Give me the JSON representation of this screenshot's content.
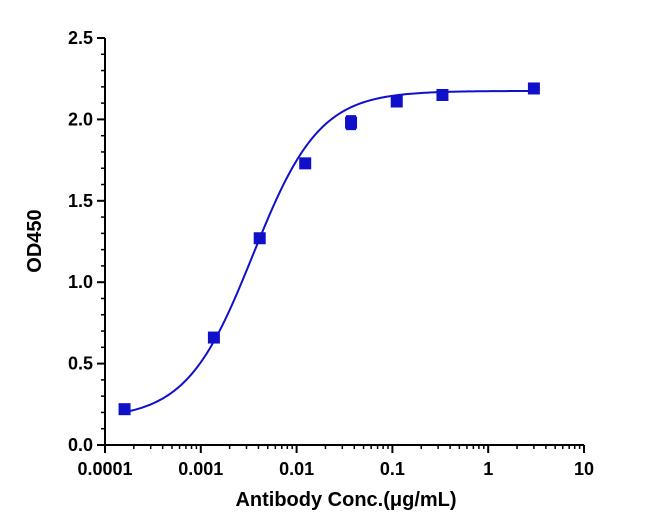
{
  "chart_data": {
    "type": "scatter",
    "title": "",
    "xlabel": "Antibody Conc.(μg/mL)",
    "ylabel": "OD450",
    "x_scale": "log",
    "xlim": [
      0.0001,
      10
    ],
    "ylim": [
      0,
      2.5
    ],
    "x_ticks": [
      "0.0001",
      "0.001",
      "0.01",
      "0.1",
      "1",
      "10"
    ],
    "y_ticks": [
      "0.0",
      "0.5",
      "1.0",
      "1.5",
      "2.0",
      "2.5"
    ],
    "grid": false,
    "legend": "none",
    "colors": {
      "series": "#1010c8",
      "axis": "#000000"
    },
    "series": [
      {
        "marker": "square",
        "x": [
          0.00016,
          0.00137,
          0.00412,
          0.0123,
          0.037,
          0.111,
          0.333,
          3.0
        ],
        "y": [
          0.22,
          0.66,
          1.27,
          1.73,
          1.98,
          2.11,
          2.15,
          2.19
        ],
        "error": [
          0.0,
          0.0,
          0.0,
          0.0,
          0.04,
          0.0,
          0.0,
          0.0
        ]
      }
    ],
    "fit_curve": {
      "type": "4PL",
      "bottom": 0.16,
      "top": 2.175,
      "ec50": 0.0035,
      "hill": 1.25
    }
  }
}
